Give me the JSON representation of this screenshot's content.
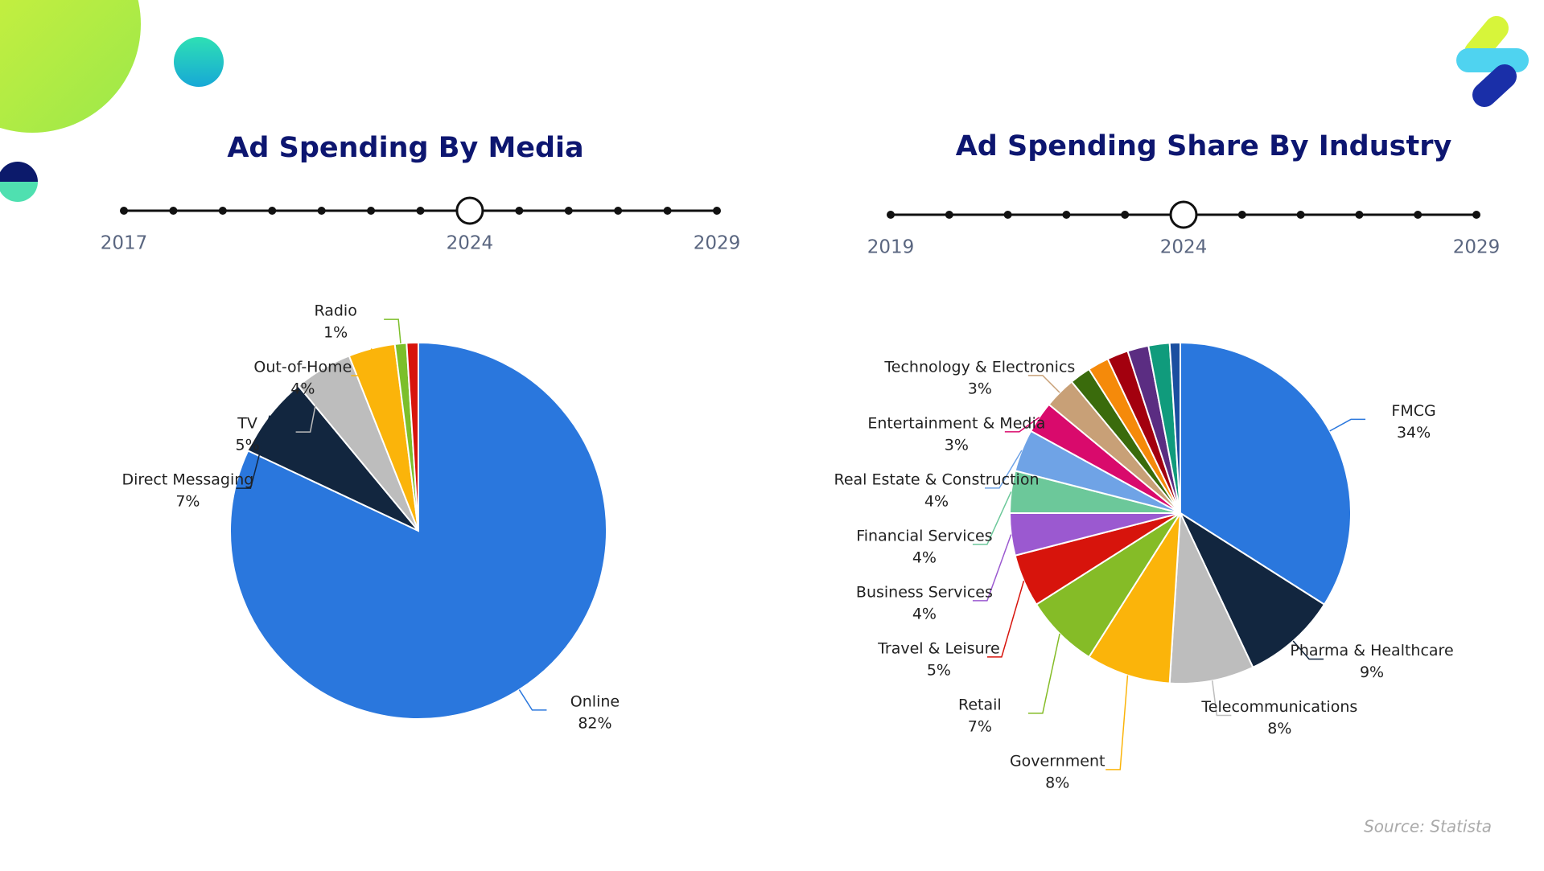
{
  "chart_data": [
    {
      "type": "pie",
      "title": "Ad Spending By Media",
      "timeline": {
        "start": 2017,
        "selected": 2024,
        "end": 2029
      },
      "categories": [
        "Online",
        "Direct Messaging",
        "TV",
        "Out-of-Home",
        "Radio",
        null
      ],
      "values": [
        82,
        7,
        5,
        4,
        1,
        1
      ],
      "value_labels": [
        "82%",
        "7%",
        "5%",
        "4%",
        "1%",
        null
      ],
      "colors": [
        "#2a77dd",
        "#12263f",
        "#bdbdbd",
        "#fbb40a",
        "#7cbf2a",
        "#d7140c"
      ]
    },
    {
      "type": "pie",
      "title": "Ad Spending Share By Industry",
      "timeline": {
        "start": 2019,
        "selected": 2024,
        "end": 2029
      },
      "categories": [
        "FMCG",
        "Pharma & Healthcare",
        "Telecommunications",
        "Government",
        "Retail",
        "Travel & Leisure",
        "Business Services",
        "Financial Services",
        "Real Estate & Construction",
        "Entertainment & Media",
        "Technology & Electronics",
        null,
        null,
        null,
        null,
        null,
        null
      ],
      "values": [
        34,
        9,
        8,
        8,
        7,
        5,
        4,
        4,
        4,
        3,
        3,
        2,
        2,
        2,
        2,
        2,
        1
      ],
      "value_labels": [
        "34%",
        "9%",
        "8%",
        "8%",
        "7%",
        "5%",
        "4%",
        "4%",
        "4%",
        "3%",
        "3%",
        null,
        null,
        null,
        null,
        null,
        null
      ],
      "colors": [
        "#2a77dd",
        "#12263f",
        "#bdbdbd",
        "#fbb40a",
        "#85bc27",
        "#d7140c",
        "#9b59d0",
        "#6cc89a",
        "#6fa3e6",
        "#d90a6c",
        "#c8a077",
        "#3a6b0c",
        "#f58a0a",
        "#a3000e",
        "#5b2d82",
        "#109b7c",
        "#1b4fa0"
      ]
    }
  ],
  "source": "Source: Statista"
}
